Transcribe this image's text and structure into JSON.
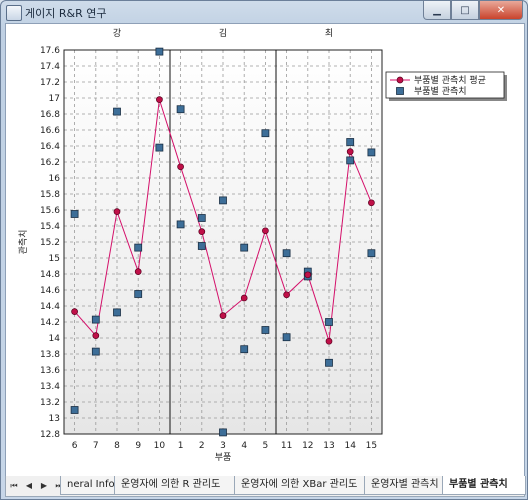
{
  "window": {
    "title": "게이지 R&R 연구"
  },
  "title_buttons": {
    "minimize": "▁",
    "maximize": "□",
    "close": "✕"
  },
  "tabs": {
    "nav": [
      "⏮",
      "◀",
      "▶",
      "⏭"
    ],
    "items": [
      {
        "label": "neral Info",
        "active": false
      },
      {
        "label": "운영자에 의한 R 관리도",
        "active": false
      },
      {
        "label": "운영자에 의한 XBar 관리도",
        "active": false
      },
      {
        "label": "운영자별 관측치",
        "active": false
      },
      {
        "label": "부품별 관측치",
        "active": true
      }
    ]
  },
  "chart_data": {
    "type": "scatter",
    "xlabel": "부품",
    "ylabel": "관측치",
    "ylim": [
      12.8,
      17.6
    ],
    "yticks": [
      "17.6",
      "17.4",
      "17.2",
      "17",
      "16.8",
      "16.6",
      "16.4",
      "16.2",
      "16",
      "15.8",
      "15.6",
      "15.4",
      "15.2",
      "15",
      "14.8",
      "14.6",
      "14.4",
      "14.2",
      "14",
      "13.8",
      "13.6",
      "13.4",
      "13.2",
      "13",
      "12.8"
    ],
    "categories": [
      "6",
      "7",
      "8",
      "9",
      "10",
      "1",
      "2",
      "3",
      "4",
      "5",
      "11",
      "12",
      "13",
      "14",
      "15"
    ],
    "groups": [
      {
        "label": "강",
        "start": 0,
        "end": 4
      },
      {
        "label": "김",
        "start": 5,
        "end": 9
      },
      {
        "label": "최",
        "start": 10,
        "end": 14
      }
    ],
    "series": [
      {
        "name": "부품별 관측치 평균",
        "kind": "line",
        "color": "#d4106a",
        "marker": "#c01048",
        "values": [
          14.33,
          14.03,
          15.58,
          14.83,
          16.98,
          16.14,
          15.33,
          14.28,
          14.5,
          15.34,
          14.54,
          14.79,
          13.96,
          16.33,
          15.69
        ]
      },
      {
        "name": "부품별 관측치",
        "kind": "scatter",
        "color": "#3d6e98",
        "points": [
          [
            0,
            13.1
          ],
          [
            0,
            15.55
          ],
          [
            1,
            14.23
          ],
          [
            1,
            13.83
          ],
          [
            2,
            16.83
          ],
          [
            2,
            14.32
          ],
          [
            3,
            15.13
          ],
          [
            3,
            14.55
          ],
          [
            4,
            17.58
          ],
          [
            4,
            16.38
          ],
          [
            5,
            16.86
          ],
          [
            5,
            15.42
          ],
          [
            6,
            15.5
          ],
          [
            6,
            15.15
          ],
          [
            7,
            15.72
          ],
          [
            7,
            12.82
          ],
          [
            8,
            15.13
          ],
          [
            8,
            13.86
          ],
          [
            9,
            16.56
          ],
          [
            9,
            14.1
          ],
          [
            10,
            15.06
          ],
          [
            10,
            14.01
          ],
          [
            11,
            14.83
          ],
          [
            11,
            14.77
          ],
          [
            12,
            14.2
          ],
          [
            12,
            13.69
          ],
          [
            13,
            16.45
          ],
          [
            13,
            16.22
          ],
          [
            14,
            16.32
          ],
          [
            14,
            15.06
          ]
        ]
      }
    ],
    "grid": true,
    "legend": "top-right"
  }
}
